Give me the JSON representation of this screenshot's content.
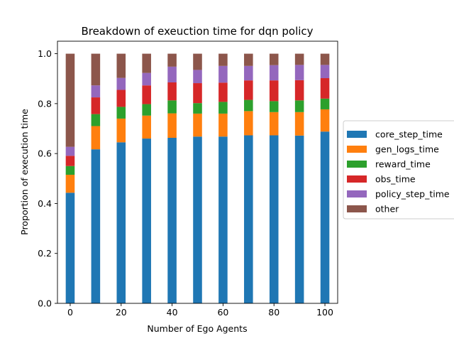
{
  "chart_data": {
    "type": "bar",
    "stacked": true,
    "title": "Breakdown of exeuction time for dqn policy",
    "xlabel": "Number of Ego Agents",
    "ylabel": "Proportion of execution time",
    "x": [
      0,
      10,
      20,
      30,
      40,
      50,
      60,
      70,
      80,
      90,
      100
    ],
    "xlim": [
      -5,
      105
    ],
    "ylim": [
      0,
      1.05
    ],
    "xticks": [
      0,
      20,
      40,
      60,
      80,
      100
    ],
    "yticks": [
      0.0,
      0.2,
      0.4,
      0.6,
      0.8,
      1.0
    ],
    "ytick_labels": [
      "0.0",
      "0.2",
      "0.4",
      "0.6",
      "0.8",
      "1.0"
    ],
    "bar_width_data": 3.5,
    "grid": false,
    "legend_position": "center-right outside",
    "series": [
      {
        "name": "core_step_time",
        "color": "#1f77b4",
        "values": [
          0.443,
          0.617,
          0.645,
          0.66,
          0.663,
          0.668,
          0.668,
          0.673,
          0.673,
          0.672,
          0.688
        ]
      },
      {
        "name": "gen_logs_time",
        "color": "#ff7f0e",
        "values": [
          0.072,
          0.093,
          0.095,
          0.092,
          0.098,
          0.092,
          0.092,
          0.097,
          0.093,
          0.094,
          0.089
        ]
      },
      {
        "name": "reward_time",
        "color": "#2ca02c",
        "values": [
          0.035,
          0.048,
          0.047,
          0.046,
          0.052,
          0.042,
          0.047,
          0.045,
          0.044,
          0.047,
          0.043
        ]
      },
      {
        "name": "obs_time",
        "color": "#d62728",
        "values": [
          0.041,
          0.067,
          0.068,
          0.075,
          0.072,
          0.08,
          0.077,
          0.078,
          0.083,
          0.081,
          0.082
        ]
      },
      {
        "name": "policy_step_time",
        "color": "#9467bd",
        "values": [
          0.036,
          0.048,
          0.048,
          0.05,
          0.063,
          0.053,
          0.067,
          0.058,
          0.061,
          0.061,
          0.053
        ]
      },
      {
        "name": "other",
        "color": "#8c564b",
        "values": [
          0.373,
          0.127,
          0.097,
          0.077,
          0.052,
          0.065,
          0.049,
          0.049,
          0.046,
          0.045,
          0.045
        ]
      }
    ]
  }
}
